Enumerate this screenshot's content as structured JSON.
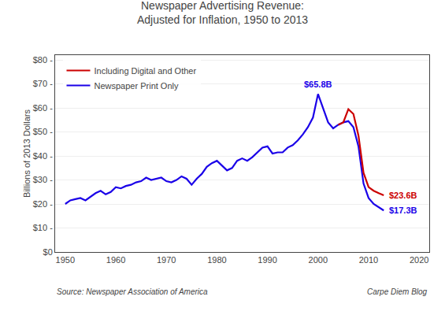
{
  "chart_data": {
    "type": "line",
    "title": "Newspaper Advertising Revenue:\nAdjusted for Inflation, 1950 to 2013",
    "ylabel": "Billions of 2013 Dollars",
    "source": "Source: Newspaper Association of America",
    "credit": "Carpe Diem Blog",
    "xlim": [
      1948,
      2022
    ],
    "ylim": [
      0,
      82
    ],
    "xticks": [
      1950,
      1960,
      1970,
      1980,
      1990,
      2000,
      2010,
      2020
    ],
    "yticks": [
      {
        "value": 0,
        "label": "$0"
      },
      {
        "value": 10,
        "label": "$10 -"
      },
      {
        "value": 20,
        "label": "$20 -"
      },
      {
        "value": 30,
        "label": "$30 -"
      },
      {
        "value": 40,
        "label": "$40 -"
      },
      {
        "value": 50,
        "label": "$50 -"
      },
      {
        "value": 60,
        "label": "$60 -"
      },
      {
        "value": 70,
        "label": "$70 -"
      },
      {
        "value": 80,
        "label": "$80 -"
      }
    ],
    "grid": true,
    "legend": "upper left",
    "series": [
      {
        "name": "Newspaper Print Only",
        "color": "#1a00e8",
        "x": [
          1950,
          1951,
          1952,
          1953,
          1954,
          1955,
          1956,
          1957,
          1958,
          1959,
          1960,
          1961,
          1962,
          1963,
          1964,
          1965,
          1966,
          1967,
          1968,
          1969,
          1970,
          1971,
          1972,
          1973,
          1974,
          1975,
          1976,
          1977,
          1978,
          1979,
          1980,
          1981,
          1982,
          1983,
          1984,
          1985,
          1986,
          1987,
          1988,
          1989,
          1990,
          1991,
          1992,
          1993,
          1994,
          1995,
          1996,
          1997,
          1998,
          1999,
          2000,
          2001,
          2002,
          2003,
          2004,
          2005,
          2006,
          2007,
          2008,
          2009,
          2010,
          2011,
          2012,
          2013
        ],
        "values": [
          20.0,
          21.5,
          22.0,
          22.5,
          21.5,
          23.0,
          24.5,
          25.5,
          24.0,
          25.0,
          27.0,
          26.5,
          27.5,
          28.0,
          29.0,
          29.5,
          31.0,
          30.0,
          30.5,
          31.0,
          29.5,
          29.0,
          30.0,
          31.5,
          30.5,
          28.0,
          30.5,
          32.5,
          35.5,
          37.0,
          38.0,
          36.0,
          34.0,
          35.0,
          38.0,
          39.0,
          38.0,
          39.5,
          41.5,
          43.5,
          44.0,
          41.0,
          41.5,
          41.5,
          43.5,
          44.5,
          46.5,
          49.0,
          52.0,
          56.0,
          65.8,
          60.0,
          54.0,
          51.5,
          53.0,
          54.0,
          54.5,
          52.0,
          44.0,
          28.5,
          22.5,
          20.0,
          18.5,
          17.3
        ]
      },
      {
        "name": "Including Digital and Other",
        "color": "#cc0000",
        "x": [
          2004,
          2005,
          2006,
          2007,
          2008,
          2009,
          2010,
          2011,
          2012,
          2013
        ],
        "values": [
          53.0,
          54.0,
          59.5,
          57.5,
          48.5,
          33.0,
          27.0,
          25.5,
          24.5,
          23.6
        ]
      }
    ],
    "annotations": [
      {
        "text": "$65.8B",
        "x": 2000,
        "y": 65.8,
        "color": "#1a00e8"
      },
      {
        "text": "$23.6B",
        "x": 2013,
        "y": 23.6,
        "color": "#cc0000"
      },
      {
        "text": "$17.3B",
        "x": 2013,
        "y": 17.3,
        "color": "#1a00e8"
      }
    ]
  }
}
